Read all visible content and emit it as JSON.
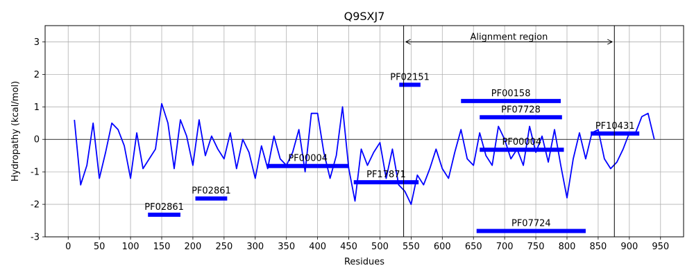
{
  "chart_data": {
    "type": "line",
    "title": "Q9SXJ7",
    "xlabel": "Residues",
    "ylabel": "Hydropathy (kcal/mol)",
    "xlim": [
      -37,
      987
    ],
    "ylim": [
      -3,
      3.5
    ],
    "xticks": [
      0,
      50,
      100,
      150,
      200,
      250,
      300,
      350,
      400,
      450,
      500,
      550,
      600,
      650,
      700,
      750,
      800,
      850,
      900,
      950
    ],
    "yticks": [
      -3,
      -2,
      -1,
      0,
      1,
      2,
      3
    ],
    "grid": true,
    "line_color": "#0000ff",
    "bar_color": "#0000ff",
    "series": [
      {
        "x": [
          10,
          20,
          30,
          40,
          50,
          60,
          70,
          80,
          90,
          100,
          110,
          120,
          130,
          140,
          150,
          160,
          170,
          180,
          190,
          200,
          210,
          220,
          230,
          240,
          250,
          260,
          270,
          280,
          290,
          300,
          310,
          320,
          330,
          340,
          350,
          360,
          370,
          380,
          390,
          400,
          410,
          420,
          430,
          440,
          450,
          460,
          470,
          480,
          490,
          500,
          510,
          520,
          530,
          540,
          550,
          560,
          570,
          580,
          590,
          600,
          610,
          620,
          630,
          640,
          650,
          660,
          670,
          680,
          690,
          700,
          710,
          720,
          730,
          740,
          750,
          760,
          770,
          780,
          790,
          800,
          810,
          820,
          830,
          840,
          850,
          860,
          870,
          880,
          890,
          900,
          910,
          920,
          930,
          940
        ],
        "values": [
          0.6,
          -1.4,
          -0.8,
          0.5,
          -1.2,
          -0.4,
          0.5,
          0.3,
          -0.2,
          -1.2,
          0.2,
          -0.9,
          -0.6,
          -0.3,
          1.1,
          0.5,
          -0.9,
          0.6,
          0.1,
          -0.8,
          0.6,
          -0.5,
          0.1,
          -0.3,
          -0.6,
          0.2,
          -0.9,
          0.0,
          -0.4,
          -1.2,
          -0.2,
          -0.9,
          0.1,
          -0.6,
          -0.8,
          -0.4,
          0.3,
          -1.0,
          0.8,
          0.8,
          -0.4,
          -1.2,
          -0.5,
          1.0,
          -0.9,
          -1.9,
          -0.3,
          -0.8,
          -0.4,
          -0.1,
          -1.2,
          -0.3,
          -1.4,
          -1.6,
          -2.0,
          -1.1,
          -1.4,
          -0.9,
          -0.3,
          -0.9,
          -1.2,
          -0.4,
          0.3,
          -0.6,
          -0.8,
          0.2,
          -0.5,
          -0.8,
          0.4,
          0.0,
          -0.6,
          -0.3,
          -0.8,
          0.4,
          -0.4,
          0.1,
          -0.7,
          0.3,
          -0.8,
          -1.8,
          -0.6,
          0.2,
          -0.6,
          0.2,
          0.3,
          -0.6,
          -0.9,
          -0.7,
          -0.3,
          0.2,
          0.2,
          0.7,
          0.8,
          0.0
        ]
      }
    ],
    "domains": [
      {
        "name": "PF02861",
        "start": 128,
        "end": 180,
        "y": -2.32
      },
      {
        "name": "PF02861",
        "start": 204,
        "end": 255,
        "y": -1.82
      },
      {
        "name": "PF00004",
        "start": 319,
        "end": 450,
        "y": -0.82
      },
      {
        "name": "PF17871",
        "start": 458,
        "end": 562,
        "y": -1.32
      },
      {
        "name": "PF02151",
        "start": 531,
        "end": 565,
        "y": 1.68
      },
      {
        "name": "PF00158",
        "start": 630,
        "end": 790,
        "y": 1.18
      },
      {
        "name": "PF07728",
        "start": 660,
        "end": 792,
        "y": 0.68
      },
      {
        "name": "PF10431",
        "start": 838,
        "end": 916,
        "y": 0.18
      },
      {
        "name": "PF00004",
        "start": 660,
        "end": 795,
        "y": -0.32
      },
      {
        "name": "PF07724",
        "start": 655,
        "end": 830,
        "y": -2.82
      }
    ],
    "alignment": {
      "label": "Alignment region",
      "start": 538,
      "end": 876,
      "y": 3
    }
  }
}
